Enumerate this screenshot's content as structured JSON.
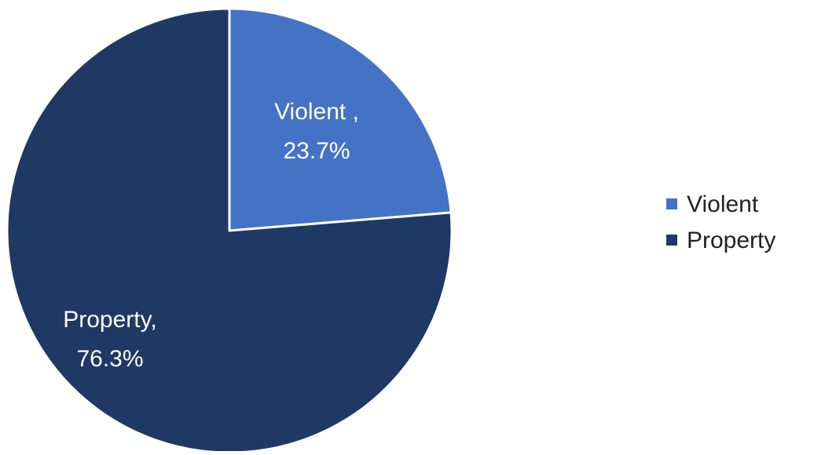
{
  "chart_data": {
    "type": "pie",
    "title": "",
    "legend_position": "right",
    "slices": [
      {
        "name": "Violent",
        "value": 23.7,
        "color": "#4472C4",
        "label_lines": [
          "Violent ,",
          "23.7%"
        ]
      },
      {
        "name": "Property",
        "value": 76.3,
        "color": "#203864",
        "label_lines": [
          "Property,",
          "76.3%"
        ]
      }
    ]
  }
}
